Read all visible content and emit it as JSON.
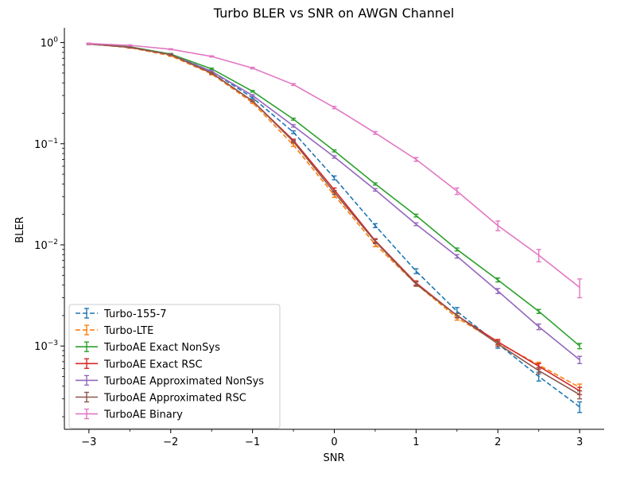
{
  "chart_data": {
    "type": "line",
    "title": "Turbo BLER vs SNR on AWGN Channel",
    "xlabel": "SNR",
    "ylabel": "BLER",
    "xlim": [
      -3.3,
      3.3
    ],
    "ylim": [
      0.00015,
      1.4
    ],
    "yscale": "log",
    "grid": false,
    "legend_position": "bottom-left",
    "x_ticks": [
      {
        "value": -3,
        "label": "−3"
      },
      {
        "value": -2,
        "label": "−2"
      },
      {
        "value": -1,
        "label": "−1"
      },
      {
        "value": 0,
        "label": "0"
      },
      {
        "value": 1,
        "label": "1"
      },
      {
        "value": 2,
        "label": "2"
      },
      {
        "value": 3,
        "label": "3"
      }
    ],
    "y_ticks": [
      {
        "value": 1,
        "base": "10",
        "exp": "0"
      },
      {
        "value": 0.1,
        "base": "10",
        "exp": "−1"
      },
      {
        "value": 0.01,
        "base": "10",
        "exp": "−2"
      },
      {
        "value": 0.001,
        "base": "10",
        "exp": "−3"
      }
    ],
    "x": [
      -3,
      -2.5,
      -2,
      -1.5,
      -1,
      -0.5,
      0,
      0.5,
      1,
      1.5,
      2,
      2.5,
      3
    ],
    "series": [
      {
        "name": "Turbo-155-7",
        "color": "#1f77b4",
        "dashed": true,
        "values": [
          0.97,
          0.9,
          0.77,
          0.52,
          0.285,
          0.13,
          0.046,
          0.0155,
          0.0055,
          0.0022,
          0.00105,
          0.0005,
          0.00025
        ],
        "errors": [
          0.01,
          0.01,
          0.01,
          0.01,
          0.006,
          0.004,
          0.002,
          0.0007,
          0.0003,
          0.0002,
          0.0001,
          5e-05,
          3e-05
        ]
      },
      {
        "name": "Turbo-LTE",
        "color": "#ff7f0e",
        "dashed": true,
        "values": [
          0.97,
          0.89,
          0.74,
          0.49,
          0.255,
          0.097,
          0.031,
          0.0101,
          0.0041,
          0.0019,
          0.00108,
          0.00065,
          0.00039
        ],
        "errors": [
          0.01,
          0.01,
          0.01,
          0.01,
          0.005,
          0.003,
          0.0015,
          0.0005,
          0.0002,
          0.0001,
          6e-05,
          4e-05,
          3e-05
        ]
      },
      {
        "name": "TurboAE Exact NonSys",
        "color": "#2ca02c",
        "dashed": false,
        "values": [
          0.97,
          0.91,
          0.77,
          0.55,
          0.33,
          0.175,
          0.085,
          0.04,
          0.0195,
          0.009,
          0.0045,
          0.0022,
          0.001
        ],
        "errors": [
          0.01,
          0.01,
          0.01,
          0.01,
          0.006,
          0.004,
          0.002,
          0.001,
          0.0006,
          0.0003,
          0.0002,
          0.0001,
          6e-05
        ]
      },
      {
        "name": "TurboAE Exact RSC",
        "color": "#d62728",
        "dashed": false,
        "values": [
          0.97,
          0.9,
          0.76,
          0.5,
          0.265,
          0.108,
          0.035,
          0.011,
          0.0042,
          0.002,
          0.0011,
          0.00063,
          0.00036
        ],
        "errors": [
          0.01,
          0.01,
          0.01,
          0.01,
          0.005,
          0.003,
          0.0015,
          0.0005,
          0.0002,
          0.0001,
          6e-05,
          4e-05,
          3e-05
        ]
      },
      {
        "name": "TurboAE Approximated NonSys",
        "color": "#9467bd",
        "dashed": false,
        "values": [
          0.97,
          0.9,
          0.76,
          0.52,
          0.3,
          0.15,
          0.074,
          0.035,
          0.016,
          0.0077,
          0.0035,
          0.00155,
          0.00073
        ],
        "errors": [
          0.01,
          0.01,
          0.01,
          0.01,
          0.006,
          0.004,
          0.002,
          0.001,
          0.0005,
          0.0003,
          0.0002,
          0.0001,
          6e-05
        ]
      },
      {
        "name": "TurboAE Approximated RSC",
        "color": "#8c564b",
        "dashed": false,
        "values": [
          0.97,
          0.9,
          0.76,
          0.5,
          0.265,
          0.105,
          0.033,
          0.0108,
          0.0041,
          0.002,
          0.00105,
          0.00057,
          0.00033
        ],
        "errors": [
          0.01,
          0.01,
          0.01,
          0.01,
          0.005,
          0.003,
          0.0015,
          0.0005,
          0.0002,
          0.0001,
          6e-05,
          4e-05,
          3e-05
        ]
      },
      {
        "name": "TurboAE Binary",
        "color": "#e377c2",
        "dashed": false,
        "values": [
          0.98,
          0.94,
          0.86,
          0.73,
          0.56,
          0.385,
          0.228,
          0.128,
          0.07,
          0.034,
          0.0155,
          0.0079,
          0.0038
        ],
        "errors": [
          0.01,
          0.01,
          0.01,
          0.01,
          0.01,
          0.008,
          0.006,
          0.004,
          0.003,
          0.0025,
          0.0017,
          0.0011,
          0.0008
        ]
      }
    ]
  }
}
